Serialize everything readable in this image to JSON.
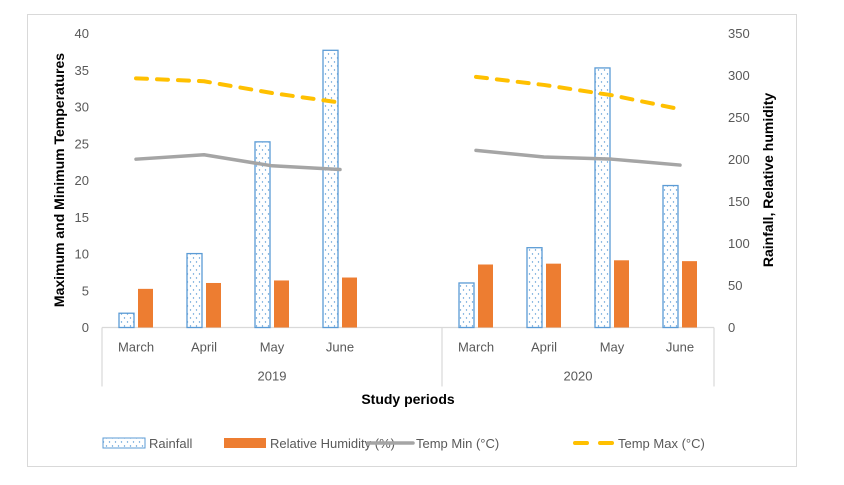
{
  "chart_data": {
    "type": "bar",
    "title": "",
    "xlabel": "Study periods",
    "ylabel": "Maximum and Minimum Temperatures",
    "y2label": "Rainfall, Relative humidity",
    "ylim": [
      0,
      40
    ],
    "y2lim": [
      0,
      350
    ],
    "yticks": [
      0,
      5,
      10,
      15,
      20,
      25,
      30,
      35,
      40
    ],
    "y2ticks": [
      0,
      50,
      100,
      150,
      200,
      250,
      300,
      350
    ],
    "grid": false,
    "legend_position": "bottom",
    "groups": [
      {
        "label": "2019",
        "categories": [
          "March",
          "April",
          "May",
          "June",
          ""
        ]
      },
      {
        "label": "2020",
        "categories": [
          "March",
          "April",
          "May",
          "June"
        ]
      }
    ],
    "categories": [
      "March 2019",
      "April 2019",
      "May 2019",
      "June 2019",
      "",
      "March 2020",
      "April 2020",
      "May 2020",
      "June 2020"
    ],
    "series": [
      {
        "name": "Rainfall",
        "kind": "bar",
        "axis": "right",
        "color": "#5B9BD5",
        "pattern": "dotted",
        "values": [
          17,
          88,
          221,
          330,
          null,
          53,
          95,
          309,
          169
        ]
      },
      {
        "name": "Relative Humidity (%)",
        "kind": "bar",
        "axis": "right",
        "color": "#ED7D31",
        "values": [
          46,
          53,
          56,
          59.5,
          null,
          75,
          76,
          80,
          79
        ]
      },
      {
        "name": "Temp Min (°C)",
        "kind": "line",
        "axis": "left",
        "color": "#A5A5A5",
        "dash": "solid",
        "values": [
          22.9,
          23.5,
          22.0,
          21.5,
          null,
          24.1,
          23.2,
          22.9,
          22.1
        ]
      },
      {
        "name": "Temp Max (°C)",
        "kind": "line",
        "axis": "left",
        "color": "#FFC000",
        "dash": "dashed",
        "values": [
          33.9,
          33.5,
          31.9,
          30.6,
          null,
          34.1,
          33.0,
          31.6,
          29.7
        ]
      }
    ]
  }
}
